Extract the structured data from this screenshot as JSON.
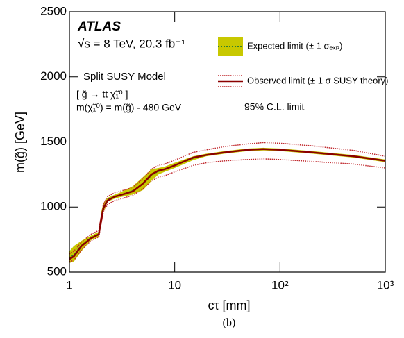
{
  "chart_data": {
    "type": "line",
    "xscale": "log",
    "title": "ATLAS",
    "subtitle": "√s = 8 TeV, 20.3 fb⁻¹",
    "annotations": [
      "Split SUSY Model",
      "[ g̃ → tt χ̃₁⁰ ]",
      "m(χ̃₁⁰) = m(g̃) - 480 GeV",
      "95% C.L. limit"
    ],
    "caption": "(b)",
    "xlabel": "cτ [mm]",
    "ylabel": "m(g̃) [GeV]",
    "x": [
      1,
      1.1,
      1.3,
      1.6,
      1.9,
      2.0,
      2.1,
      2.3,
      2.7,
      3,
      4,
      5,
      6,
      7,
      8,
      10,
      15,
      20,
      30,
      50,
      70,
      100,
      200,
      500,
      1000
    ],
    "series": [
      {
        "name": "Expected limit (± 1 σₑₓₚ)",
        "color": "#2e7d32",
        "band_color": "#c8c800",
        "values": [
          610,
          630,
          705,
          765,
          790,
          910,
          995,
          1055,
          1080,
          1090,
          1125,
          1175,
          1245,
          1275,
          1290,
          1320,
          1375,
          1400,
          1420,
          1440,
          1445,
          1440,
          1420,
          1390,
          1355
        ],
        "high": [
          660,
          700,
          740,
          780,
          810,
          960,
          1030,
          1070,
          1095,
          1110,
          1160,
          1230,
          1290,
          1300,
          1310,
          1340,
          1390,
          1410,
          1430,
          1450,
          1455,
          1450,
          1430,
          1400,
          1365
        ],
        "low": [
          570,
          580,
          660,
          745,
          770,
          860,
          960,
          1040,
          1065,
          1075,
          1095,
          1130,
          1200,
          1250,
          1270,
          1300,
          1360,
          1390,
          1410,
          1430,
          1435,
          1430,
          1410,
          1380,
          1345
        ]
      },
      {
        "name": "Observed limit (± 1 σ SUSY theory)",
        "color": "#8b0000",
        "band_color": "#c0282d",
        "values": [
          600,
          620,
          700,
          760,
          790,
          900,
          990,
          1050,
          1080,
          1090,
          1120,
          1180,
          1250,
          1280,
          1290,
          1320,
          1380,
          1400,
          1420,
          1440,
          1445,
          1440,
          1420,
          1390,
          1355
        ],
        "high": [
          640,
          660,
          730,
          790,
          820,
          930,
          1020,
          1080,
          1110,
          1120,
          1150,
          1220,
          1290,
          1320,
          1330,
          1360,
          1420,
          1440,
          1465,
          1485,
          1495,
          1490,
          1470,
          1435,
          1390
        ],
        "low": [
          580,
          590,
          670,
          740,
          770,
          870,
          960,
          1020,
          1050,
          1060,
          1090,
          1140,
          1200,
          1230,
          1240,
          1270,
          1320,
          1340,
          1355,
          1365,
          1370,
          1365,
          1350,
          1330,
          1300
        ]
      }
    ],
    "xlim": [
      1,
      1000
    ],
    "xticks": [
      1,
      10,
      {
        "value": 100,
        "label": "10²"
      },
      {
        "value": 1000,
        "label": "10³"
      }
    ],
    "ylim": [
      500,
      2500
    ],
    "yticks": [
      500,
      1000,
      1500,
      2000,
      2500
    ]
  }
}
